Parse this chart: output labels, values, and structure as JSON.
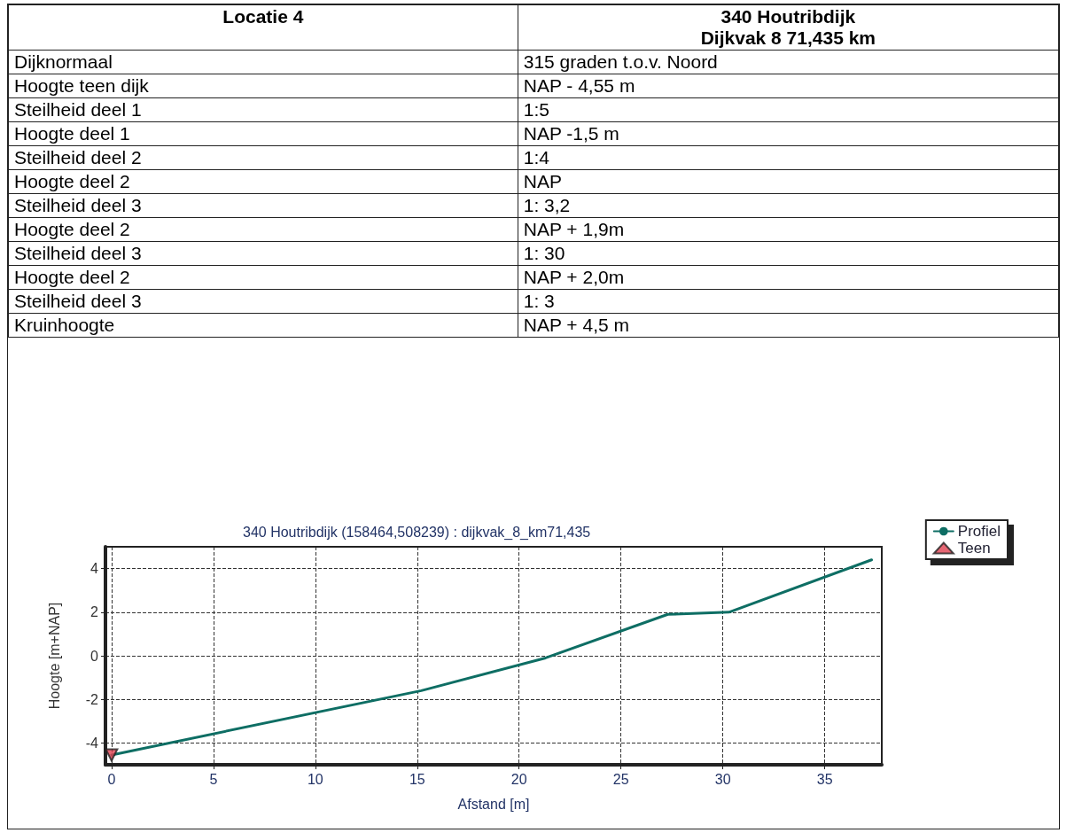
{
  "chart_data": [
    {
      "type": "other",
      "annotations": [
        "Locatie 4",
        "340 Houtribdijk\nDijkvak 8 71,435 km",
        "Dijknormaal",
        "315 graden t.o.v. Noord",
        "Hoogte teen dijk",
        "NAP - 4,55 m",
        "Steilheid deel 1",
        "1:5",
        "Hoogte deel 1",
        "NAP -1,5 m",
        "Steilheid deel 2",
        "1:4",
        "Hoogte deel 2",
        "NAP",
        "Steilheid deel 3",
        "1: 3,2",
        "Hoogte deel 2",
        "NAP + 1,9m",
        "Steilheid deel 3",
        "1: 30",
        "Hoogte deel 2",
        "NAP + 2,0m",
        "Steilheid deel 3",
        "1: 3",
        "Kruinhoogte",
        "NAP + 4,5 m"
      ]
    },
    {
      "type": "line",
      "title": "340 Houtribdijk (158464,508239) : dijkvak_8_km71,435",
      "xlabel": "Afstand [m]",
      "ylabel": "Hoogte [m+NAP]",
      "xlim": [
        -0.3,
        37.8
      ],
      "xticks": [
        0,
        5,
        10,
        15,
        20,
        25,
        30,
        35
      ],
      "ylim": [
        -5,
        5
      ],
      "yticks": [
        -4,
        -2,
        0,
        2,
        4
      ],
      "grid": true,
      "legend": "top right",
      "marker": "none",
      "line_style": "solid",
      "series": [
        {
          "name": "Profiel",
          "color": "#0e6e64",
          "x": [
            0,
            15.2,
            21.3,
            27.3,
            30.3,
            37.3
          ],
          "values": [
            -4.55,
            -1.6,
            -0.1,
            1.9,
            2.0,
            4.4
          ]
        },
        {
          "name": "Teen",
          "type": "scatter",
          "marker": "triangle",
          "color": "#e04050",
          "x": [
            0
          ],
          "values": [
            -4.55
          ]
        }
      ]
    }
  ]
}
